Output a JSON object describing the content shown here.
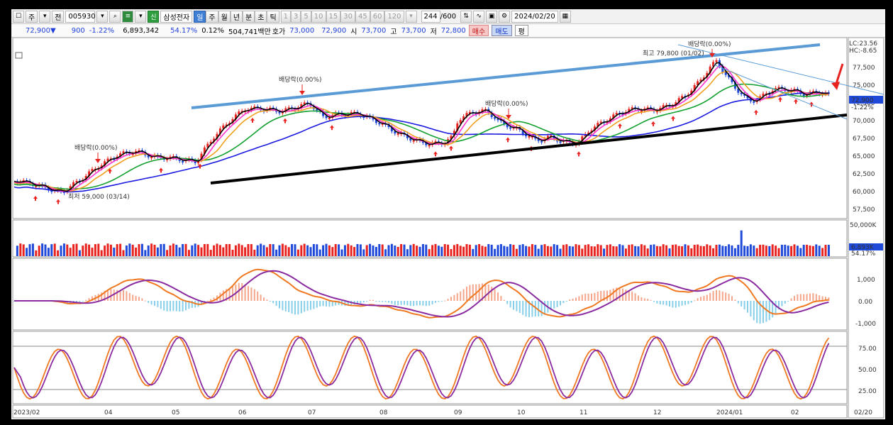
{
  "toolbar": {
    "mode_label": "주",
    "type_label": "전",
    "code": "005930",
    "name": "삼성전자",
    "period_buttons": [
      "일",
      "주",
      "월",
      "년",
      "분",
      "초",
      "틱"
    ],
    "interval_buttons": [
      "1",
      "3",
      "5",
      "10",
      "15",
      "30",
      "45",
      "60",
      "120"
    ],
    "count": "244",
    "count_total": "/600",
    "date": "2024/02/20"
  },
  "quote": {
    "price": "72,900",
    "arrow": "▼",
    "change": "900",
    "change_pct": "-1.22%",
    "volume": "6,893,342",
    "volume_ratio": "54.17%",
    "turnover": "0.12%",
    "amount": "504,741백만",
    "bid_label": "호가",
    "bid1": "73,000",
    "bid2": "72,900",
    "open_label": "시",
    "open": "73,700",
    "high_label": "고",
    "high": "73,700",
    "low_label": "저",
    "low": "72,800",
    "buy_label": "매수",
    "sell_label": "매도",
    "eval_label": "평"
  },
  "price_panel": {
    "lc": "LC:23.56",
    "hc": "HC:-8.65",
    "ticks": [
      "77,500",
      "75,000",
      "72,500",
      "70,000",
      "67,500",
      "65,000",
      "62,500",
      "60,000",
      "57,500"
    ],
    "current_price": "72,900",
    "current_pct": "-1.22%",
    "high_label": "최고 79,800 (01/02)",
    "low_label": "최저 59,000 (03/14)",
    "dividend_labels": [
      "배당락(0.00%)",
      "배당락(0.00%)",
      "배당락(0.00%)",
      "배당락(0.00%)"
    ]
  },
  "volume_panel": {
    "ticks": [
      "50,000K"
    ],
    "current": "6,893K",
    "pct": "54.17%"
  },
  "macd_panel": {
    "ticks": [
      "1,000",
      "0.00",
      "-1,000"
    ]
  },
  "stoch_panel": {
    "ticks": [
      "75.00",
      "50.00",
      "25.00"
    ]
  },
  "x_axis": {
    "labels": [
      "2023/02",
      "04",
      "05",
      "06",
      "07",
      "08",
      "09",
      "10",
      "11",
      "12",
      "2024/01",
      "02"
    ],
    "end_label": "02/20"
  },
  "colors": {
    "up": "#e8231f",
    "down": "#1f49d8",
    "ma5": "#000000",
    "ma10": "#ff33cc",
    "ma20": "#f0a020",
    "ma60": "#12a030",
    "ma120": "#1a1ae0",
    "resistance_line": "#5b9bd5",
    "support_line": "#000000",
    "macd_line": "#f07820",
    "signal_line": "#8a2aa0"
  }
}
